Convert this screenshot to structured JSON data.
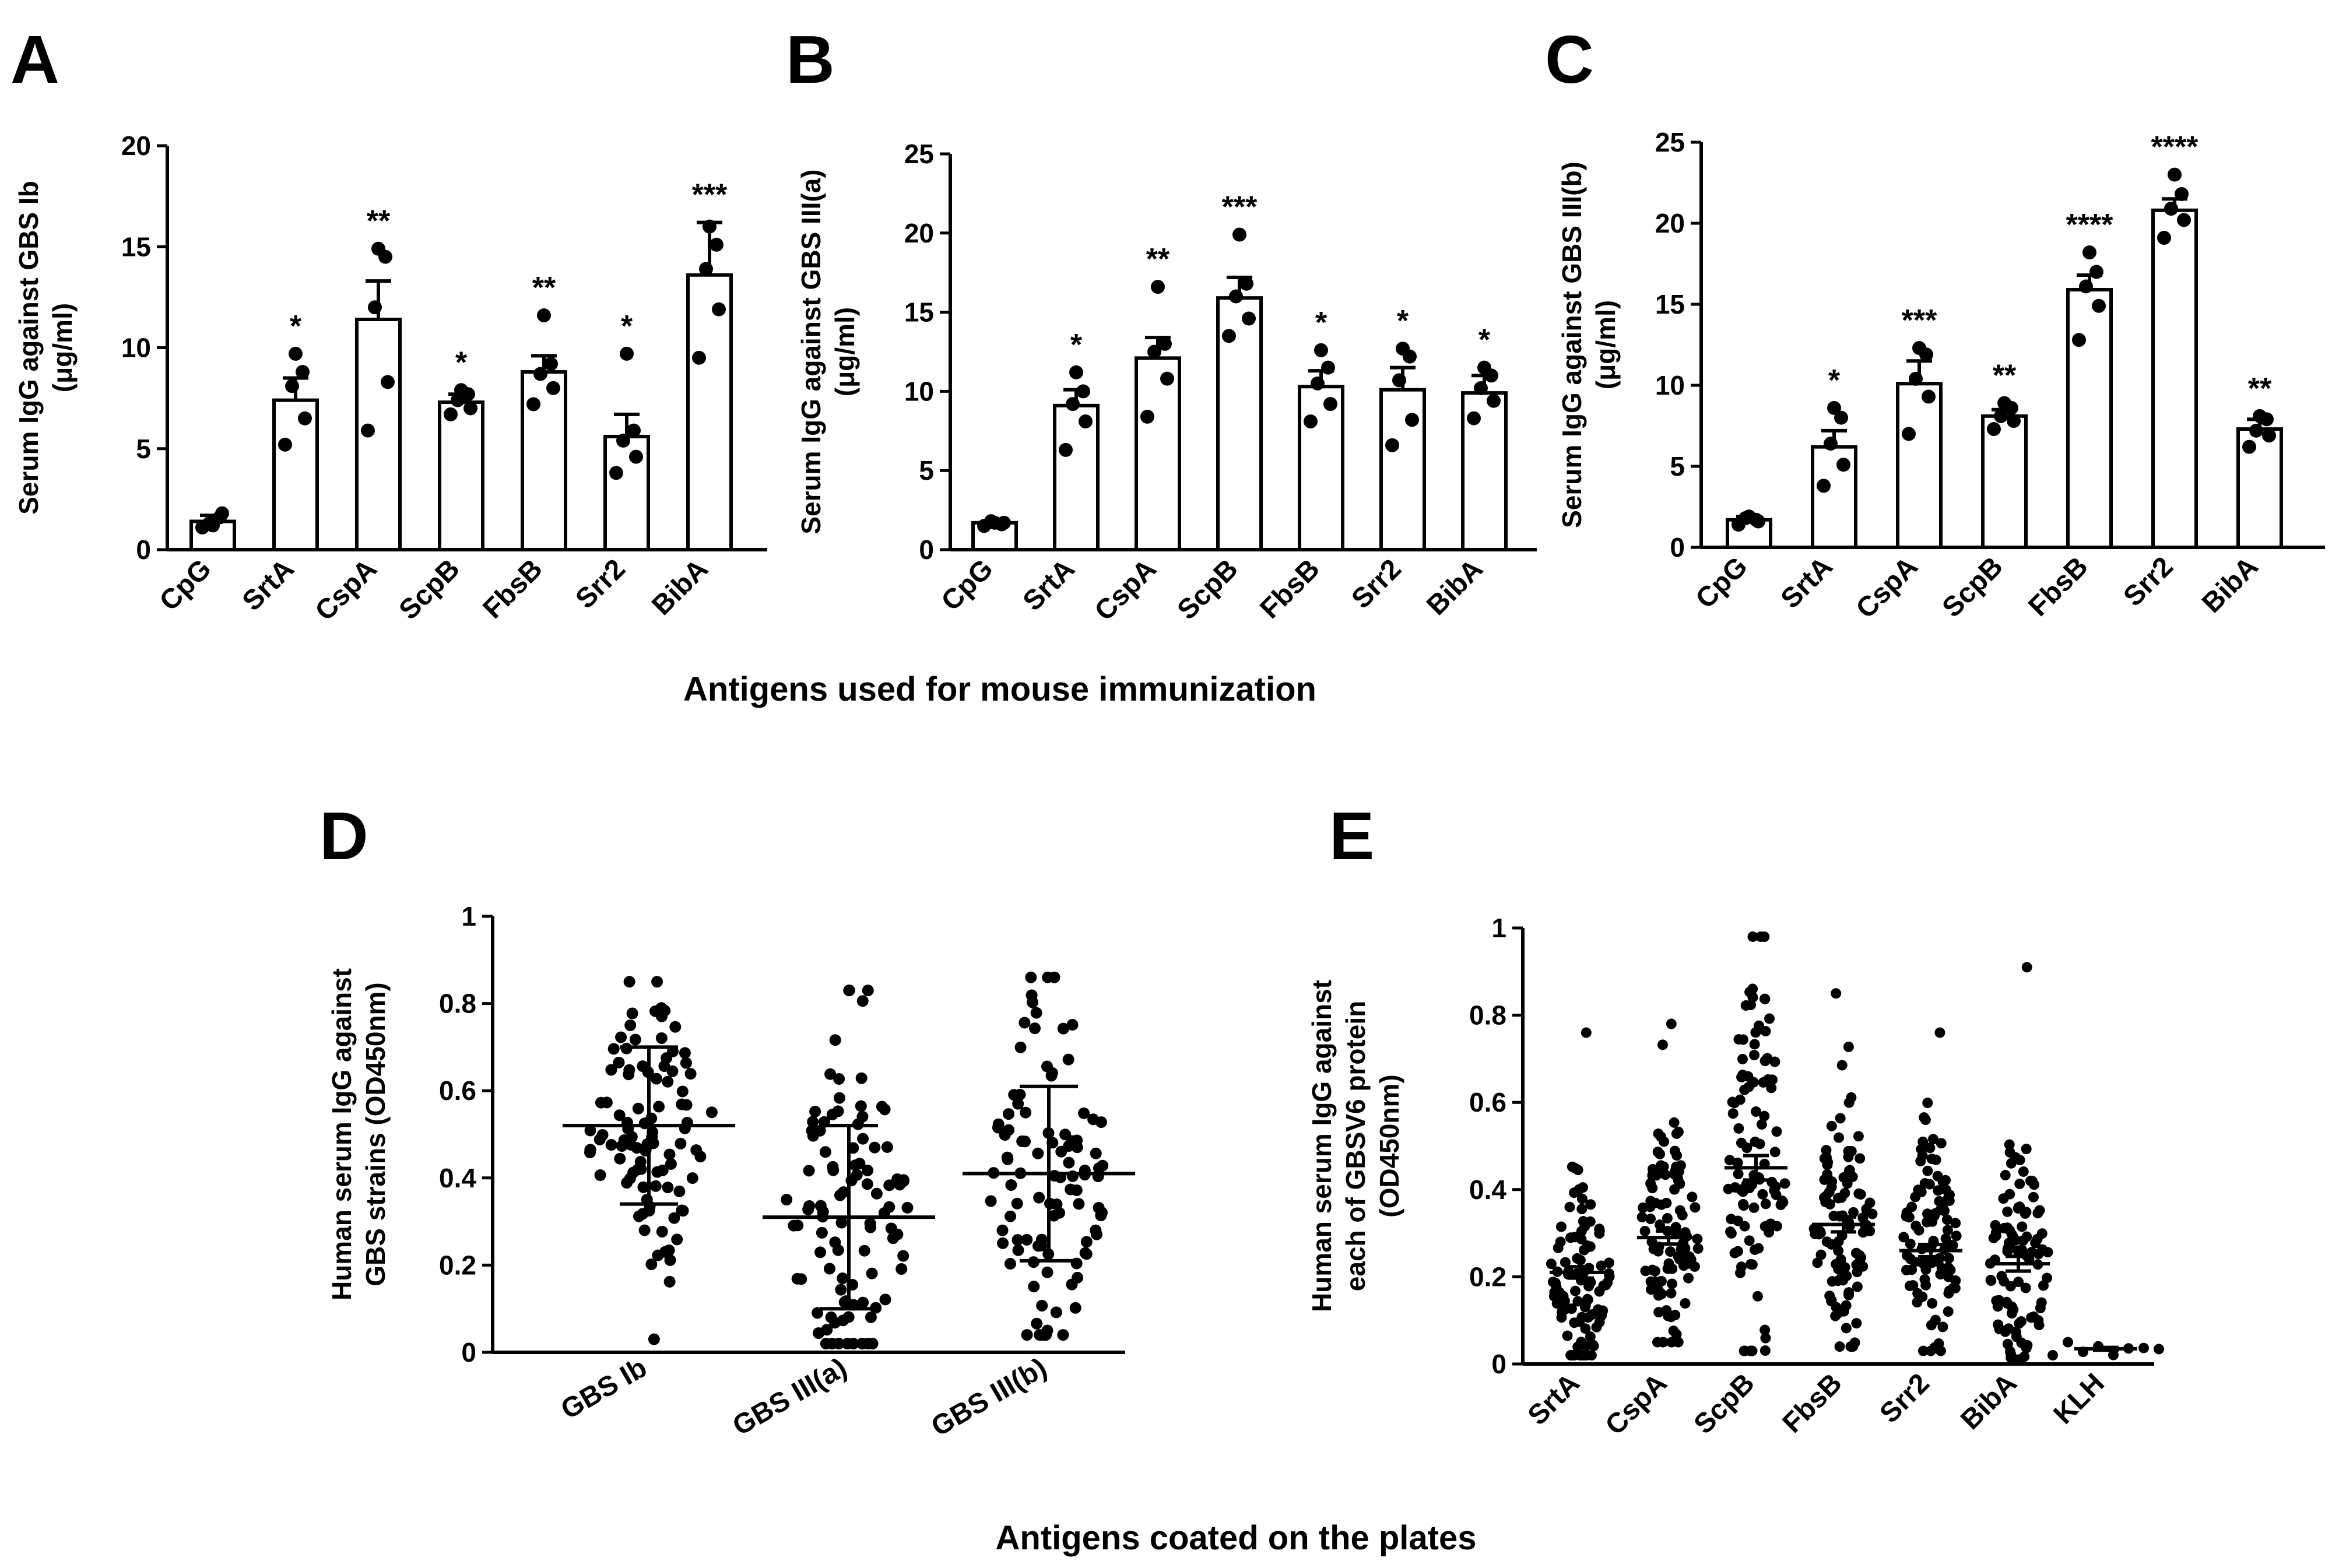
{
  "shared": {
    "xtitle_top": "Antigens used for mouse immunization",
    "xtitle_bottom": "Antigens coated  on the plates"
  },
  "chart_data": [
    {
      "panel": "A",
      "type": "bar",
      "ylabel_lines": [
        "Serum IgG against GBS Ib",
        "(μg/ml)"
      ],
      "ylim": [
        0,
        20
      ],
      "yticks": [
        0,
        5,
        10,
        15,
        20
      ],
      "categories": [
        "CpG",
        "SrtA",
        "CspA",
        "ScpB",
        "FbsB",
        "Srr2",
        "BibA"
      ],
      "values": [
        1.4,
        7.4,
        11.4,
        7.3,
        8.8,
        5.6,
        13.6
      ],
      "sem": [
        0.3,
        1.1,
        1.9,
        0.4,
        0.8,
        1.1,
        2.6
      ],
      "points": [
        [
          1.1,
          1.8,
          1.3,
          1.6,
          1.2
        ],
        [
          5.2,
          6.5,
          8.1,
          8.8,
          9.7
        ],
        [
          5.9,
          8.3,
          12.0,
          14.5,
          14.9
        ],
        [
          6.7,
          7.0,
          7.4,
          7.7,
          7.9
        ],
        [
          7.2,
          8.0,
          8.7,
          9.2,
          11.6
        ],
        [
          3.8,
          4.6,
          5.4,
          5.9,
          9.7
        ],
        [
          9.5,
          11.9,
          13.9,
          15.1,
          16.0
        ]
      ],
      "significance": [
        "",
        "*",
        "**",
        "*",
        "**",
        "*",
        "***"
      ]
    },
    {
      "panel": "B",
      "type": "bar",
      "ylabel_lines": [
        "Serum IgG against GBS III(a)",
        "(μg/ml)"
      ],
      "ylim": [
        0,
        25
      ],
      "yticks": [
        0,
        5,
        10,
        15,
        20,
        25
      ],
      "categories": [
        "CpG",
        "SrtA",
        "CspA",
        "ScpB",
        "FbsB",
        "Srr2",
        "BibA"
      ],
      "values": [
        1.7,
        9.1,
        12.1,
        15.9,
        10.3,
        10.1,
        9.9
      ],
      "sem": [
        0.1,
        1.0,
        1.3,
        1.3,
        1.0,
        1.4,
        1.1
      ],
      "points": [
        [
          1.5,
          1.7,
          1.8,
          1.6,
          1.7
        ],
        [
          6.3,
          8.1,
          9.2,
          10.0,
          11.2
        ],
        [
          8.4,
          10.8,
          12.5,
          13.0,
          16.6
        ],
        [
          13.5,
          14.6,
          16.0,
          16.8,
          19.9
        ],
        [
          8.1,
          9.2,
          10.5,
          11.5,
          12.6
        ],
        [
          6.6,
          8.2,
          10.7,
          12.2,
          12.7
        ],
        [
          8.3,
          9.4,
          10.2,
          11.0,
          11.5
        ]
      ],
      "significance": [
        "",
        "*",
        "**",
        "***",
        "*",
        "*",
        "*"
      ]
    },
    {
      "panel": "C",
      "type": "bar",
      "ylabel_lines": [
        "Serum IgG against GBS III(b)",
        "(μg/ml)"
      ],
      "ylim": [
        0,
        25
      ],
      "yticks": [
        0,
        5,
        10,
        15,
        20,
        25
      ],
      "categories": [
        "CpG",
        "SrtA",
        "CspA",
        "ScpB",
        "FbsB",
        "Srr2",
        "BibA"
      ],
      "values": [
        1.7,
        6.2,
        10.1,
        8.1,
        15.9,
        20.8,
        7.3
      ],
      "sem": [
        0.2,
        1.0,
        1.4,
        0.4,
        0.9,
        0.7,
        0.6
      ],
      "points": [
        [
          1.4,
          1.6,
          1.8,
          1.7,
          1.9
        ],
        [
          3.8,
          5.1,
          6.4,
          8.0,
          8.6
        ],
        [
          7.0,
          9.3,
          10.4,
          11.9,
          12.3
        ],
        [
          7.3,
          7.8,
          8.1,
          8.6,
          8.9
        ],
        [
          12.8,
          14.9,
          16.1,
          17.0,
          18.2
        ],
        [
          19.1,
          20.2,
          20.9,
          21.8,
          23.0
        ],
        [
          6.2,
          6.9,
          7.2,
          7.9,
          8.1
        ]
      ],
      "significance": [
        "",
        "*",
        "***",
        "**",
        "****",
        "****",
        "**"
      ]
    },
    {
      "panel": "D",
      "type": "scatter",
      "ylabel_lines": [
        "Human serum IgG against",
        "GBS strains (OD450nm)"
      ],
      "ylim": [
        0,
        1.0
      ],
      "yticks": [
        0.0,
        0.2,
        0.4,
        0.6,
        0.8,
        1.0
      ],
      "categories": [
        "GBS Ib",
        "GBS III(a)",
        "GBS III(b)"
      ],
      "n_per_group": 100,
      "mean": [
        0.52,
        0.31,
        0.41
      ],
      "sd": [
        0.18,
        0.21,
        0.2
      ],
      "range": [
        [
          0.03,
          0.85
        ],
        [
          0.02,
          0.83
        ],
        [
          0.04,
          0.86
        ]
      ]
    },
    {
      "panel": "E",
      "type": "scatter",
      "ylabel_lines": [
        "Human serum IgG against",
        "each of GBSV6 protein",
        "(OD450nm)"
      ],
      "ylim": [
        0,
        1.0
      ],
      "yticks": [
        0.0,
        0.2,
        0.4,
        0.6,
        0.8,
        1.0
      ],
      "categories": [
        "SrtA",
        "CspA",
        "ScpB",
        "FbsB",
        "Srr2",
        "BibA",
        "KLH"
      ],
      "n_per_group": [
        100,
        100,
        100,
        100,
        100,
        100,
        8
      ],
      "mean": [
        0.21,
        0.29,
        0.45,
        0.32,
        0.26,
        0.23,
        0.035
      ],
      "sem": [
        0.013,
        0.015,
        0.028,
        0.017,
        0.014,
        0.017,
        0.003
      ],
      "range": [
        [
          0.02,
          0.76
        ],
        [
          0.05,
          0.78
        ],
        [
          0.03,
          0.98
        ],
        [
          0.04,
          0.85
        ],
        [
          0.03,
          0.76
        ],
        [
          0.01,
          0.91
        ],
        [
          0.02,
          0.05
        ]
      ]
    }
  ]
}
